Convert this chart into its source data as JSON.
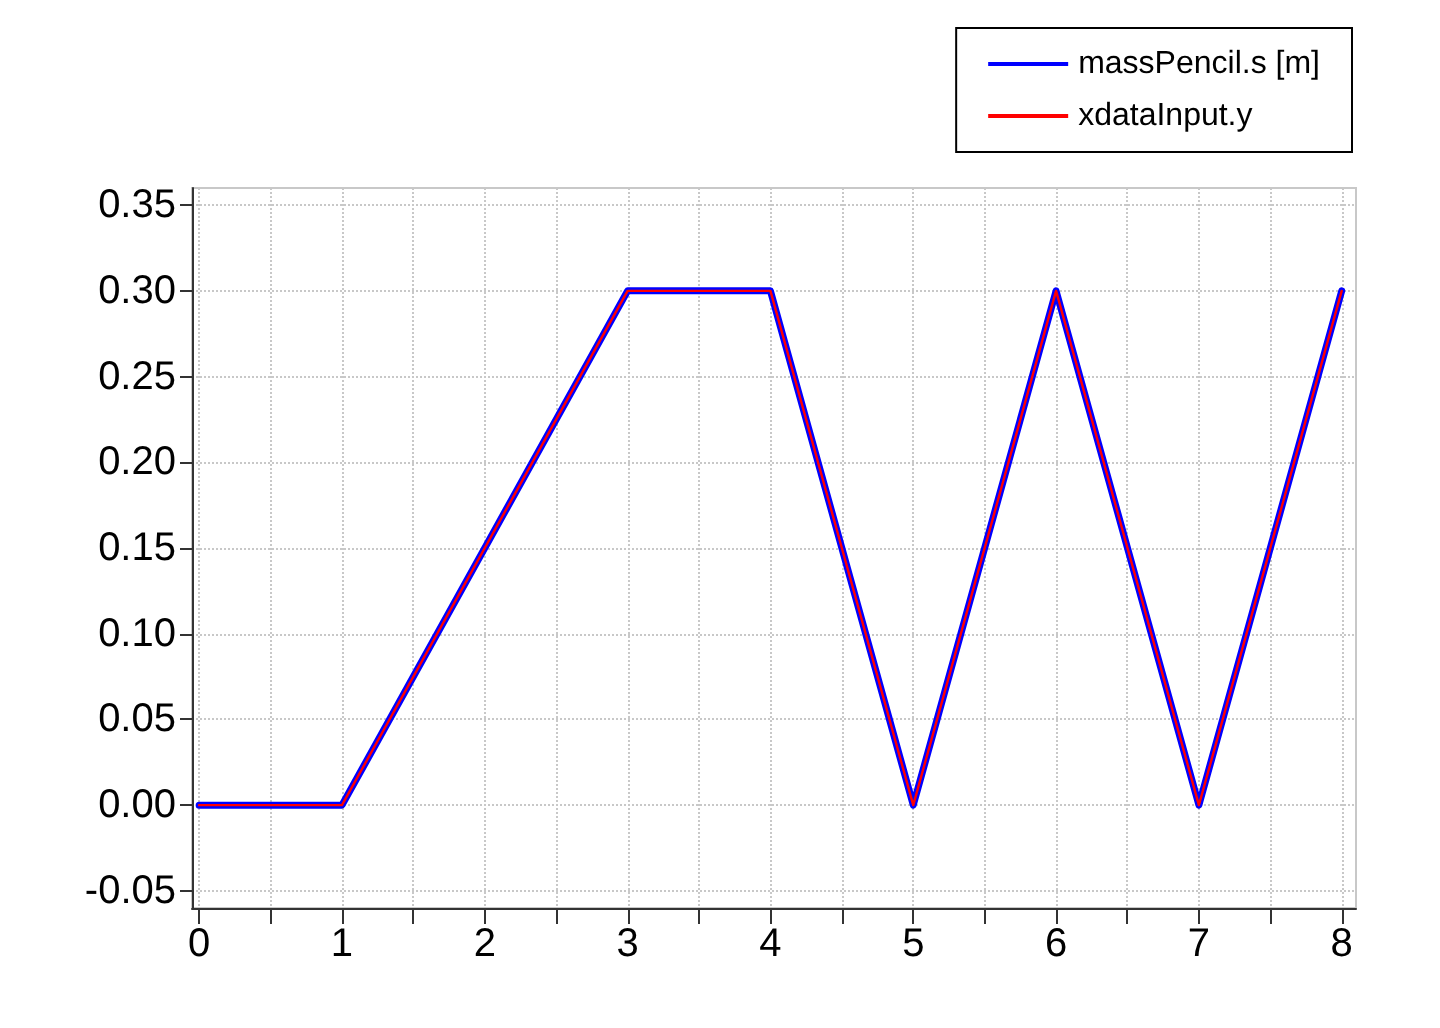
{
  "chart_data": {
    "type": "line",
    "x": [
      0,
      1,
      3,
      4,
      5,
      6,
      7,
      8
    ],
    "series": [
      {
        "name": "massPencil.s [m]",
        "color": "#0000ff",
        "values": [
          0,
          0,
          0.3,
          0.3,
          0,
          0.3,
          0,
          0.3
        ]
      },
      {
        "name": "xdataInput.y",
        "color": "#ff0000",
        "values": [
          0,
          0,
          0.3,
          0.3,
          0,
          0.3,
          0,
          0.3
        ]
      }
    ],
    "xlim": [
      -0.05,
      8.1
    ],
    "ylim": [
      -0.06,
      0.36
    ],
    "xticks": [
      0,
      {
        "value": 0.5,
        "label": null
      },
      1,
      {
        "value": 1.5,
        "label": null
      },
      2,
      {
        "value": 2.5,
        "label": null
      },
      3,
      {
        "value": 3.5,
        "label": null
      },
      4,
      {
        "value": 4.5,
        "label": null
      },
      5,
      {
        "value": 5.5,
        "label": null
      },
      6,
      {
        "value": 6.5,
        "label": null
      },
      7,
      {
        "value": 7.5,
        "label": null
      },
      8
    ],
    "yticks": [
      {
        "value": -0.05,
        "label": "-0.05"
      },
      {
        "value": 0,
        "label": "0.00"
      },
      {
        "value": 0.05,
        "label": "0.05"
      },
      {
        "value": 0.1,
        "label": "0.10"
      },
      {
        "value": 0.15,
        "label": "0.15"
      },
      {
        "value": 0.2,
        "label": "0.20"
      },
      {
        "value": 0.25,
        "label": "0.25"
      },
      {
        "value": 0.3,
        "label": "0.30"
      },
      {
        "value": 0.35,
        "label": "0.35"
      }
    ],
    "grid": true,
    "legend": "top right",
    "marker": "none",
    "line_style": "solid"
  }
}
